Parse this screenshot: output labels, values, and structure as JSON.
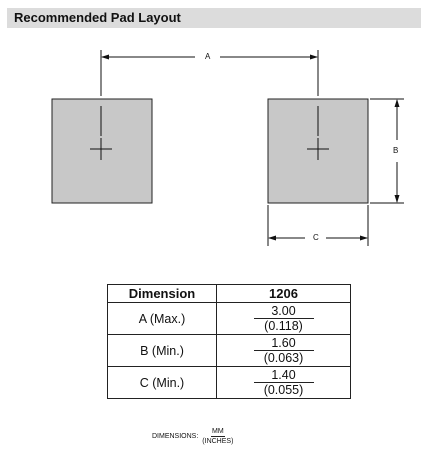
{
  "header": {
    "title": "Recommended Pad Layout"
  },
  "diagram": {
    "label_a": "A",
    "label_b": "B",
    "label_c": "C",
    "pad_color": "#c8c8c8"
  },
  "table": {
    "headers": [
      "Dimension",
      "1206"
    ],
    "rows": [
      {
        "label": "A (Max.)",
        "mm": "3.00",
        "inches": "(0.118)"
      },
      {
        "label": "B (Min.)",
        "mm": "1.60",
        "inches": "(0.063)"
      },
      {
        "label": "C (Min.)",
        "mm": "1.40",
        "inches": "(0.055)"
      }
    ]
  },
  "footnote": {
    "prefix": "DIMENSIONS:",
    "numerator": "MM",
    "denominator": "(INCHES)"
  }
}
